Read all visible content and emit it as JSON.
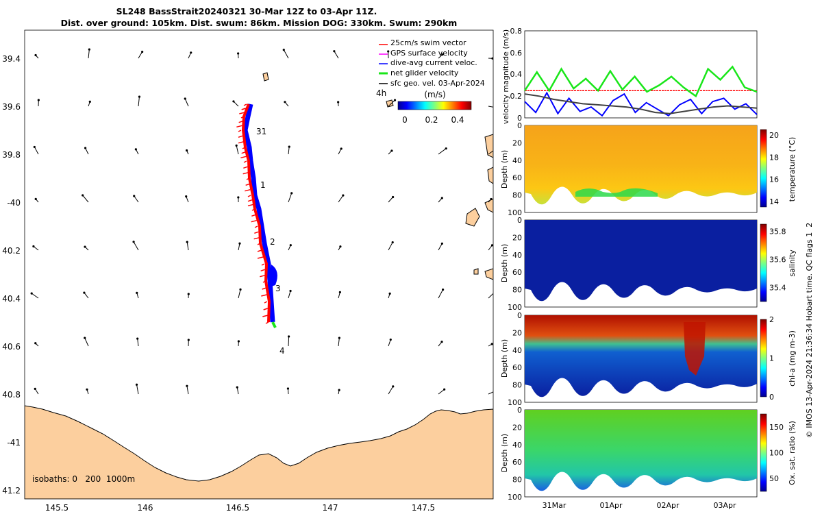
{
  "title": {
    "line1": "SL248 BassStrait20240321 30-Mar 12Z to 03-Apr 11Z.",
    "line2": "Dist. over ground: 105km. Dist. swum: 86km. Mission DOG: 330km. Swum: 290km"
  },
  "colors": {
    "land": "#fccf9e",
    "red": "#ff0000",
    "blue": "#0000ff",
    "green": "#19e619",
    "magenta": "#ff00ff",
    "dark": "#404040"
  },
  "map": {
    "lon_ticks": [
      "145.5",
      "146",
      "146.5",
      "147",
      "147.5"
    ],
    "lat_ticks": [
      "39.4",
      "39.6",
      "39.8",
      "-40",
      "40.2",
      "40.4",
      "40.6",
      "40.8",
      "-41",
      "41.2"
    ],
    "day_labels": [
      "31",
      "1",
      "2",
      "3",
      "4"
    ],
    "hour_label": "4h",
    "isobaths": "isobaths: 0   200  1000m",
    "legend": [
      {
        "label": "25cm/s swim vector",
        "color": "#ff0000"
      },
      {
        "label": "GPS surface velocity",
        "color": "#ff00ff"
      },
      {
        "label": "dive-avg current veloc.",
        "color": "#0000ff"
      },
      {
        "label": "net glider velocity",
        "color": "#19e619"
      },
      {
        "label": "sfc geo. vel. 03-Apr-2024",
        "color": "#000000"
      }
    ],
    "colorbar_title": "(m/s)",
    "colorbar_ticks": [
      "0",
      "0.2",
      "0.4"
    ]
  },
  "chart_data": [
    {
      "type": "line",
      "title": "",
      "ylabel": "velocity magnitude (m/s)",
      "ylim": [
        0,
        0.8
      ],
      "y_ticks": [
        "0",
        "0.2",
        "0.4",
        "0.6",
        "0.8"
      ],
      "series": [
        {
          "name": "swim vector",
          "color": "#ff0000",
          "values": [
            0.25,
            0.25,
            0.25,
            0.25,
            0.25,
            0.25,
            0.25,
            0.25,
            0.25
          ]
        },
        {
          "name": "net glider velocity",
          "color": "#19e619",
          "values": [
            0.25,
            0.42,
            0.25,
            0.45,
            0.27,
            0.36,
            0.25,
            0.43,
            0.26,
            0.38,
            0.24,
            0.3,
            0.38,
            0.28,
            0.2,
            0.45,
            0.35,
            0.47,
            0.28,
            0.24
          ]
        },
        {
          "name": "dive-avg current veloc.",
          "color": "#0000ff",
          "values": [
            0.15,
            0.05,
            0.23,
            0.04,
            0.18,
            0.06,
            0.1,
            0.02,
            0.16,
            0.22,
            0.05,
            0.14,
            0.08,
            0.02,
            0.12,
            0.17,
            0.04,
            0.15,
            0.18,
            0.08,
            0.13,
            0.03
          ]
        },
        {
          "name": "sfc geo. vel.",
          "color": "#404040",
          "values": [
            0.22,
            0.2,
            0.17,
            0.15,
            0.13,
            0.12,
            0.11,
            0.1,
            0.08,
            0.05,
            0.04,
            0.06,
            0.08,
            0.1,
            0.11,
            0.1,
            0.09
          ]
        }
      ]
    },
    {
      "type": "heatmap",
      "variable": "temperature",
      "cbar_label": "temperature (°C)",
      "ylabel": "Depth (m)",
      "y_ticks": [
        "0",
        "20",
        "40",
        "60",
        "80",
        "100"
      ],
      "cbar_ticks": [
        "14",
        "16",
        "18",
        "20"
      ],
      "clim": [
        13.5,
        20.5
      ]
    },
    {
      "type": "heatmap",
      "variable": "salinity",
      "cbar_label": "salinity",
      "ylabel": "Depth (m)",
      "y_ticks": [
        "0",
        "20",
        "40",
        "60",
        "80",
        "100"
      ],
      "cbar_ticks": [
        "35.4",
        "35.6",
        "35.8"
      ],
      "clim": [
        35.3,
        35.85
      ]
    },
    {
      "type": "heatmap",
      "variable": "chl-a",
      "cbar_label": "chl-a (mg m-3)",
      "ylabel": "Depth (m)",
      "y_ticks": [
        "0",
        "20",
        "40",
        "60",
        "80",
        "100"
      ],
      "cbar_ticks": [
        "0",
        "1",
        "2"
      ],
      "clim": [
        0,
        2
      ]
    },
    {
      "type": "heatmap",
      "variable": "Ox. sat. ratio",
      "cbar_label": "Ox. sat. ratio (%)",
      "ylabel": "Depth (m)",
      "y_ticks": [
        "0",
        "20",
        "40",
        "60",
        "80",
        "100"
      ],
      "cbar_ticks": [
        "50",
        "100",
        "150"
      ],
      "clim": [
        25,
        175
      ],
      "x_ticks": [
        "31Mar",
        "01Apr",
        "02Apr",
        "03Apr"
      ]
    }
  ],
  "credit": "© IMOS 13-Apr-2024 21:36:34 Hobart time. QC flags 1  2"
}
